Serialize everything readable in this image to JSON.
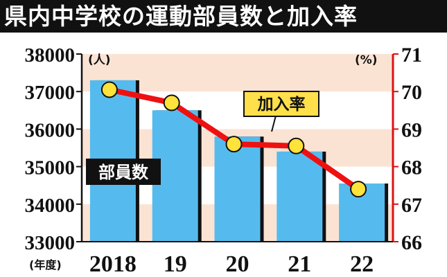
{
  "chart_data": {
    "type": "bar",
    "title": "県内中学校の運動部員数と加入率",
    "categories": [
      "2018",
      "19",
      "20",
      "21",
      "22"
    ],
    "x_axis_prefix": "(年度)",
    "left_axis": {
      "unit": "(人)",
      "ylim": [
        33000,
        38000
      ],
      "ticks": [
        "33000",
        "34000",
        "35000",
        "36000",
        "37000",
        "38000"
      ]
    },
    "right_axis": {
      "unit": "(%)",
      "ylim": [
        66,
        71
      ],
      "ticks": [
        "66",
        "67",
        "68",
        "69",
        "70",
        "71"
      ],
      "color": "#dd1111"
    },
    "series": [
      {
        "name": "部員数",
        "type": "bar",
        "axis": "left",
        "values": [
          37300,
          36500,
          35800,
          35400,
          34550
        ],
        "color": "#55bbee"
      },
      {
        "name": "加入率",
        "type": "line",
        "axis": "right",
        "values": [
          70.05,
          69.7,
          68.6,
          68.55,
          67.4
        ],
        "color": "#ee1111",
        "marker_color": "#ffe23a"
      }
    ],
    "background_bands": [
      "#fbe3d4",
      "#ffffff"
    ],
    "grid": false
  }
}
